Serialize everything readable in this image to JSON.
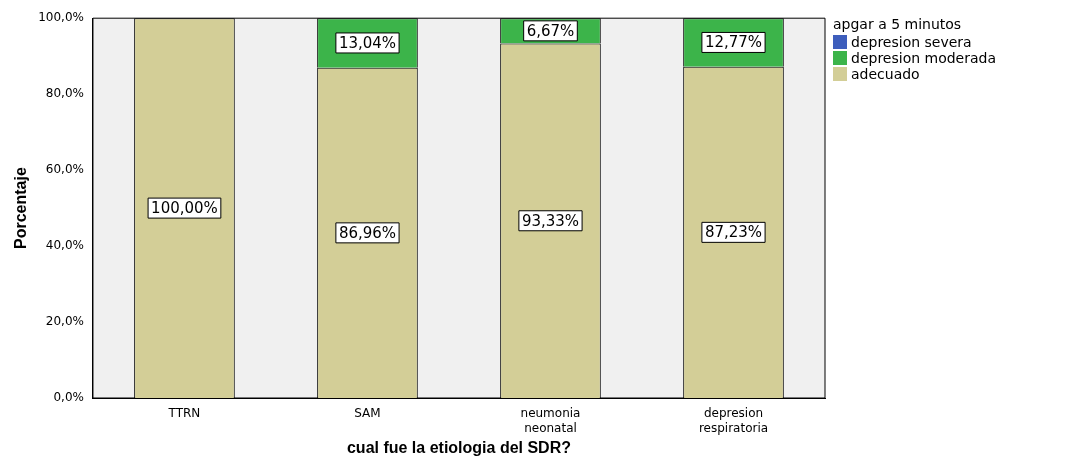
{
  "chart_data": {
    "type": "bar",
    "stacked": true,
    "xlabel": "cual fue la etiologia del SDR?",
    "ylabel": "Porcentaje",
    "legend_title": "apgar a 5 minutos",
    "legend": "top right",
    "grid": false,
    "categories": [
      "TTRN",
      "SAM",
      "neumonia neonatal",
      "depresion respiratoria"
    ],
    "ylim": [
      0,
      100
    ],
    "yticks": [
      {
        "value": 0,
        "label": "0,0%"
      },
      {
        "value": 20,
        "label": "20,0%"
      },
      {
        "value": 40,
        "label": "40,0%"
      },
      {
        "value": 60,
        "label": "60,0%"
      },
      {
        "value": 80,
        "label": "80,0%"
      },
      {
        "value": 100,
        "label": "100,0%"
      }
    ],
    "series": [
      {
        "name": "adecuado",
        "color": "#d3ce97",
        "values": [
          100,
          86.96,
          93.33,
          87.23
        ],
        "value_labels": [
          "100,00%",
          "86,96%",
          "93,33%",
          "87,23%"
        ]
      },
      {
        "name": "depresion moderada",
        "color": "#3cb44a",
        "values": [
          0,
          13.04,
          6.67,
          12.77
        ],
        "value_labels": [
          null,
          "13,04%",
          "6,67%",
          "12,77%"
        ]
      },
      {
        "name": "depresion severa",
        "color": "#3e5ebc",
        "values": [
          0,
          0,
          0,
          0
        ]
      }
    ]
  }
}
